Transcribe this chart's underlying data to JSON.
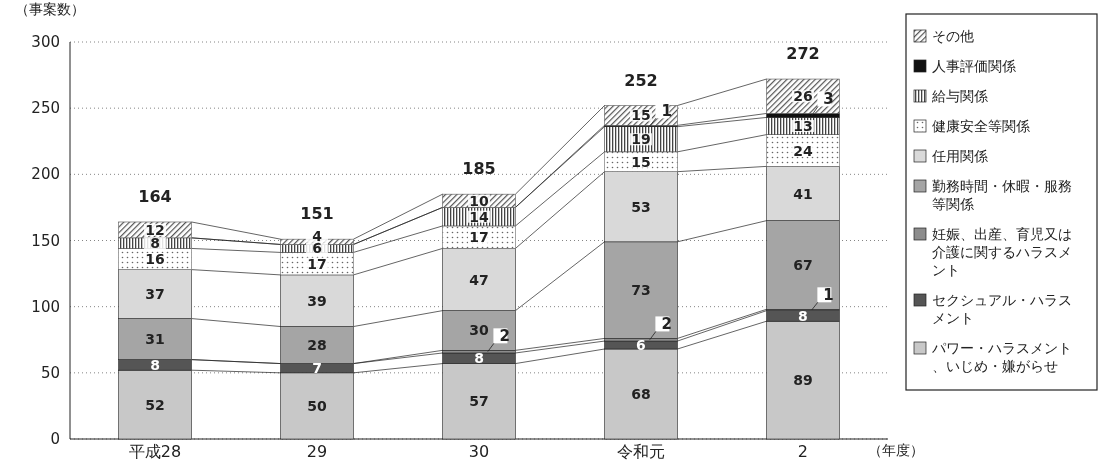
{
  "chart_data": {
    "type": "bar",
    "stacked": true,
    "ylabel": "（事案数）",
    "xlabel": "（年度）",
    "categories": [
      "平成28",
      "29",
      "30",
      "令和元",
      "2"
    ],
    "ylim": [
      0,
      300
    ],
    "yticks": [
      0,
      50,
      100,
      150,
      200,
      250,
      300
    ],
    "grid": "y",
    "legend": "right",
    "series": [
      {
        "name": "パワー・ハラスメント、いじめ・嫌がらせ",
        "color": "#c8c8c8",
        "values": [
          52,
          50,
          57,
          68,
          89
        ],
        "value_labels": [
          "52",
          "50",
          "57",
          "68",
          "89"
        ]
      },
      {
        "name": "セクシュアル・ハラスメント",
        "color": "#555555",
        "values": [
          8,
          7,
          8,
          6,
          8
        ],
        "value_labels": [
          "8",
          "7",
          "8",
          "6",
          "8"
        ]
      },
      {
        "name": "妊娠、出産、育児又は介護に関するハラスメント",
        "color": "#8c8c8c",
        "values": [
          0,
          0,
          2,
          2,
          1
        ],
        "value_labels": [
          null,
          null,
          "2",
          "2",
          "1"
        ]
      },
      {
        "name": "勤務時間・休暇・服務等関係",
        "color": "#a5a5a5",
        "values": [
          31,
          28,
          30,
          73,
          67
        ],
        "value_labels": [
          "31",
          "28",
          "30",
          "73",
          "67"
        ]
      },
      {
        "name": "任用関係",
        "color": "#d9d9d9",
        "values": [
          37,
          39,
          47,
          53,
          41
        ],
        "value_labels": [
          "37",
          "39",
          "47",
          "53",
          "41"
        ]
      },
      {
        "name": "健康安全等関係",
        "color": "#666666",
        "values": [
          16,
          17,
          17,
          15,
          24
        ],
        "value_labels": [
          "16",
          "17",
          "17",
          "15",
          "24"
        ]
      },
      {
        "name": "給与関係",
        "color": "#444444",
        "values": [
          8,
          6,
          14,
          19,
          13
        ],
        "value_labels": [
          "8",
          "6",
          "14",
          "19",
          "13"
        ]
      },
      {
        "name": "人事評価関係",
        "color": "#111111",
        "values": [
          0,
          0,
          0,
          1,
          3
        ],
        "value_labels": [
          null,
          null,
          null,
          "1",
          "3"
        ]
      },
      {
        "name": "その他",
        "color": "#555555",
        "values": [
          12,
          4,
          10,
          15,
          26
        ],
        "value_labels": [
          "12",
          "4",
          "10",
          "15",
          "26"
        ]
      }
    ],
    "totals": [
      "164",
      "151",
      "185",
      "252",
      "272"
    ]
  }
}
